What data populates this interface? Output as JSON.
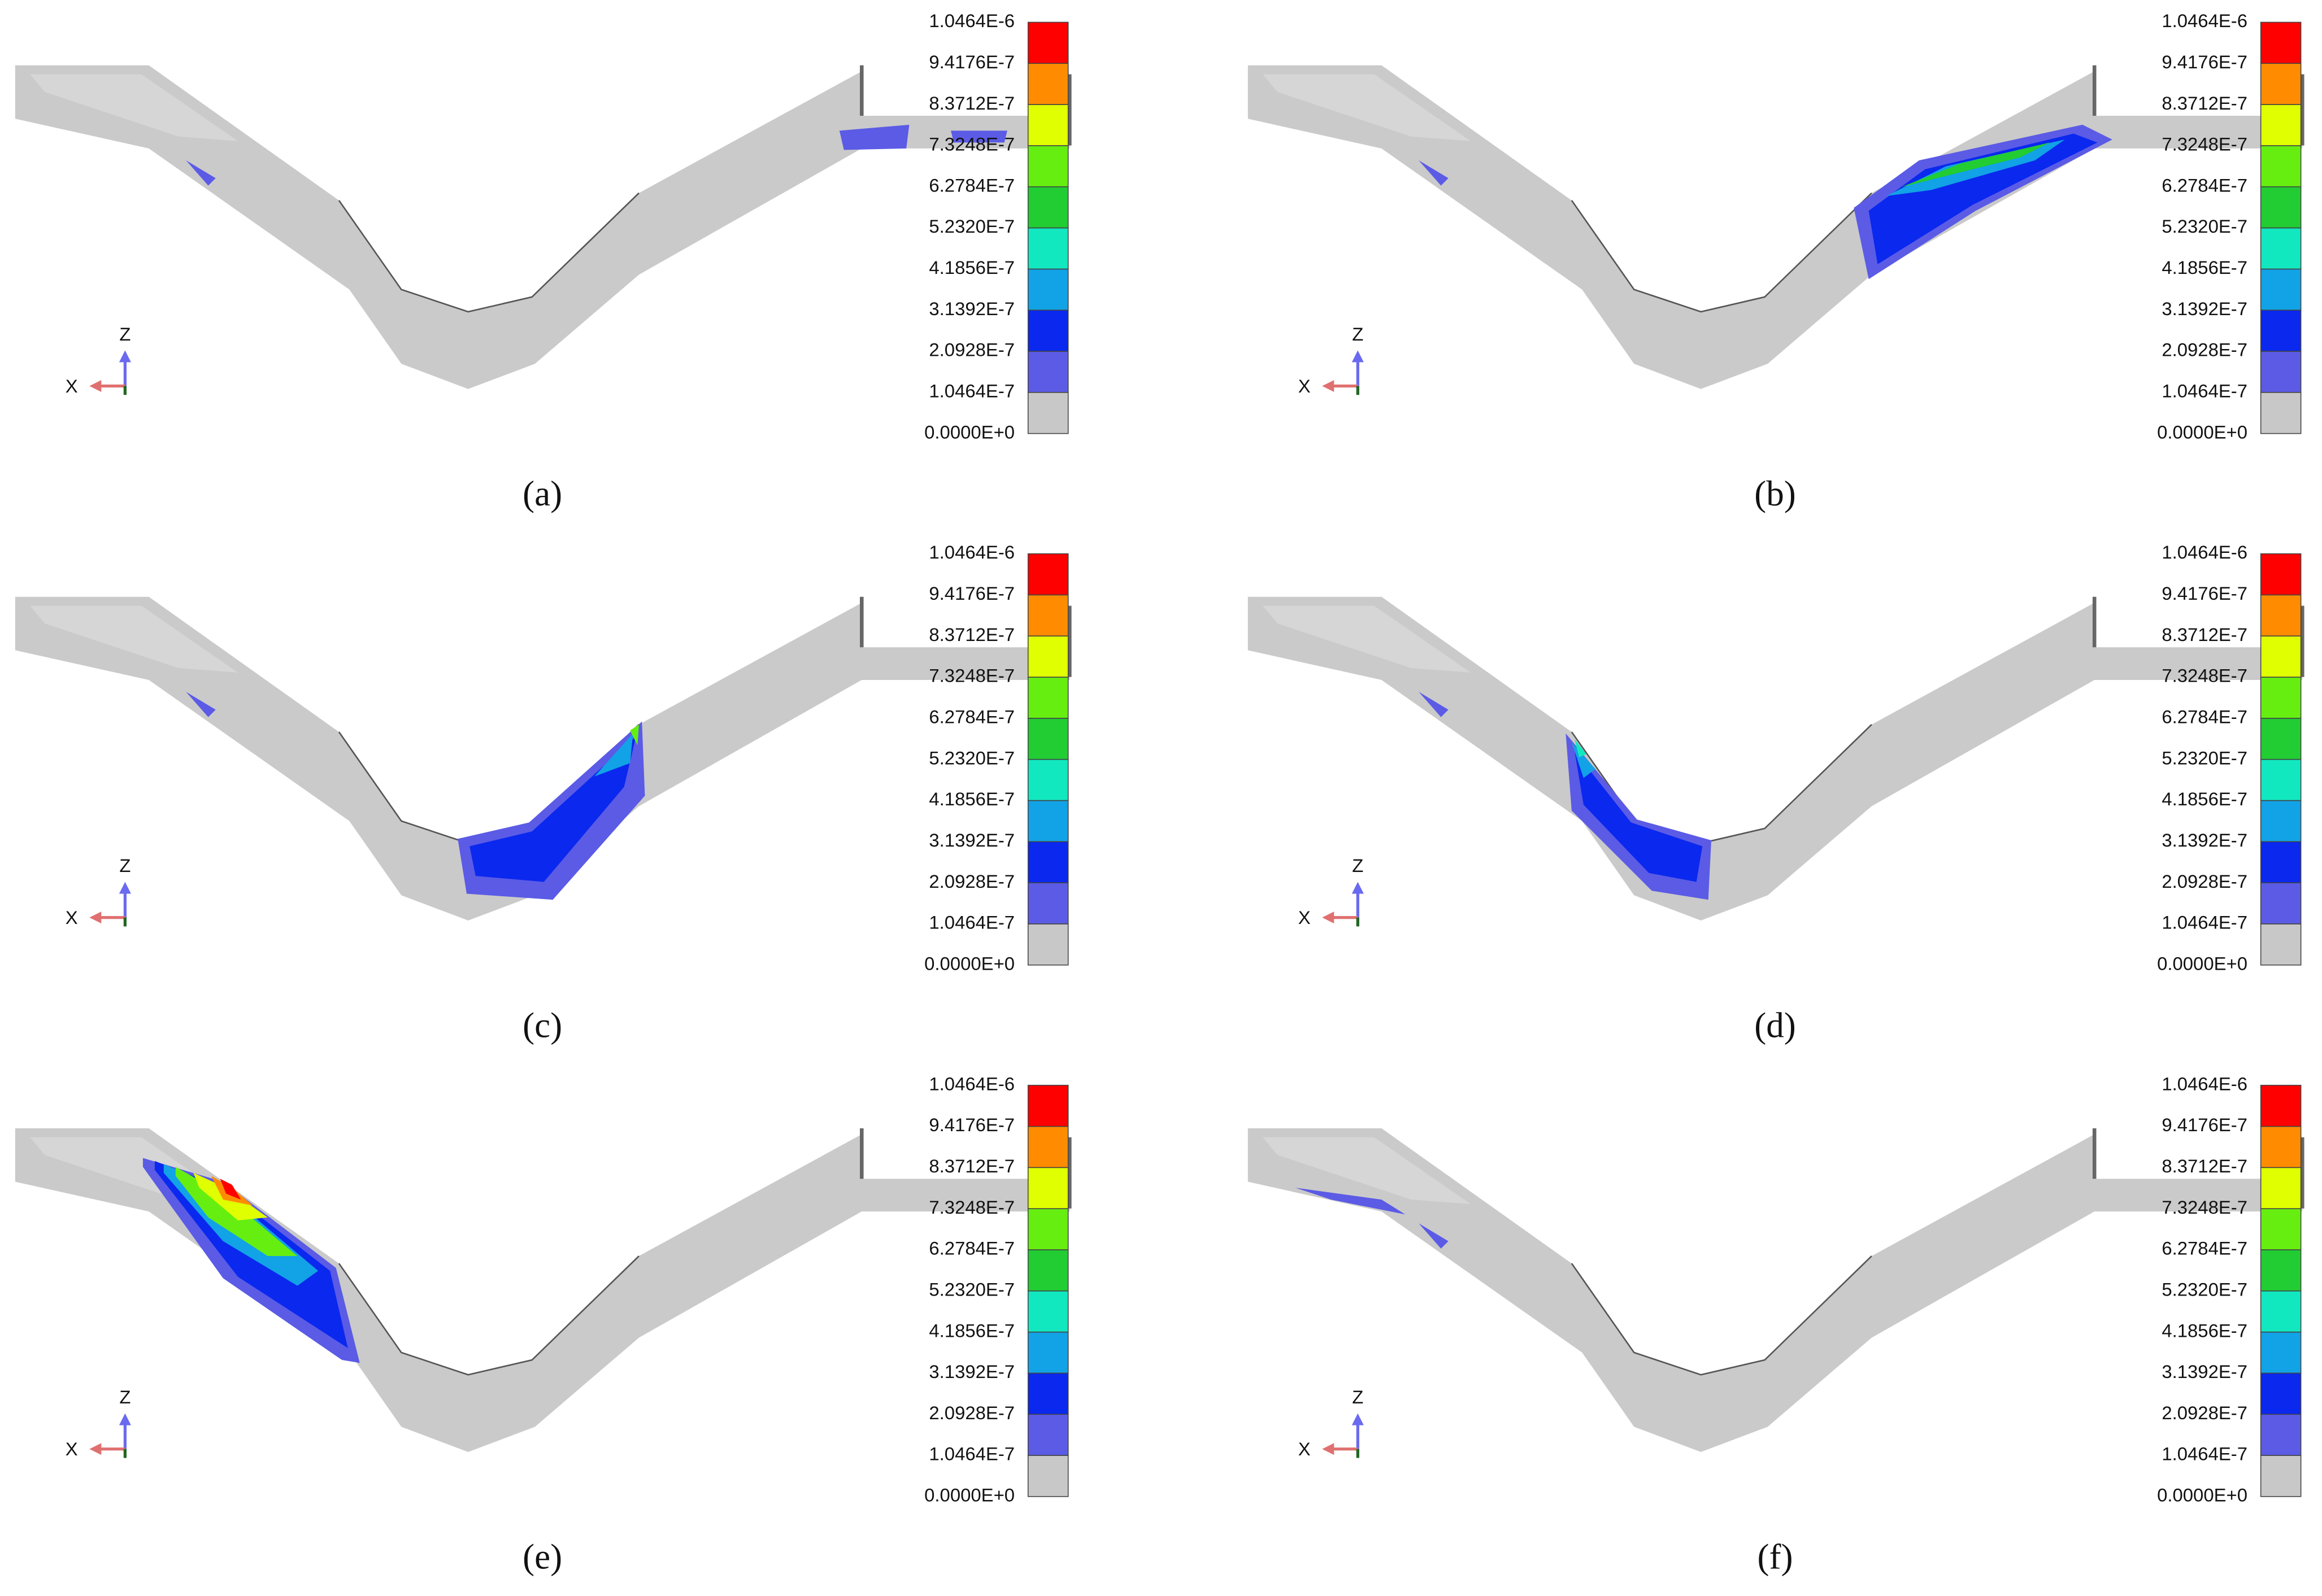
{
  "colorbar": {
    "range": [
      0,
      1.0464e-06
    ],
    "ticks": [
      {
        "value": 0,
        "label": "0.0000E+0"
      },
      {
        "value": 1.0464e-07,
        "label": "1.0464E-7"
      },
      {
        "value": 2.0928e-07,
        "label": "2.0928E-7"
      },
      {
        "value": 3.1392e-07,
        "label": "3.1392E-7"
      },
      {
        "value": 4.1856e-07,
        "label": "4.1856E-7"
      },
      {
        "value": 5.232e-07,
        "label": "5.2320E-7"
      },
      {
        "value": 6.2784e-07,
        "label": "6.2784E-7"
      },
      {
        "value": 7.3248e-07,
        "label": "7.3248E-7"
      },
      {
        "value": 8.3712e-07,
        "label": "8.3712E-7"
      },
      {
        "value": 9.4176e-07,
        "label": "9.4176E-7"
      },
      {
        "value": 1.0464e-06,
        "label": "1.0464E-6"
      }
    ],
    "colors": [
      "#c8c8c8",
      "#5b5be6",
      "#0a28ee",
      "#12a2e6",
      "#12e8c0",
      "#22cc33",
      "#66ee11",
      "#e0ff00",
      "#ff8c00",
      "#ff0000"
    ]
  },
  "axes": {
    "z": "Z",
    "x": "X"
  },
  "panels": [
    {
      "label": "(a)"
    },
    {
      "label": "(b)"
    },
    {
      "label": "(c)"
    },
    {
      "label": "(d)"
    },
    {
      "label": "(e)"
    },
    {
      "label": "(f)"
    }
  ]
}
